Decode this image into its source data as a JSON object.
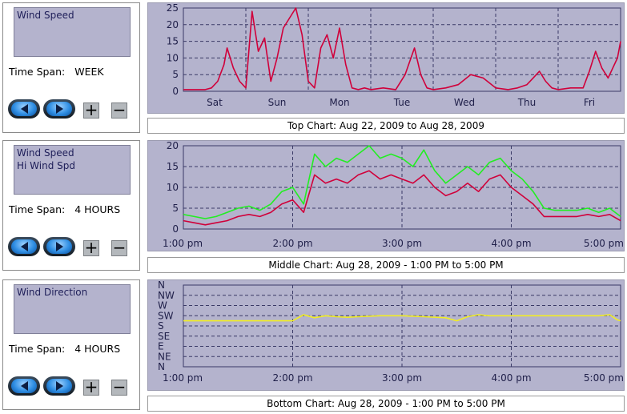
{
  "panels": [
    {
      "legend": [
        "Wind Speed"
      ],
      "time_span_label": "Time Span:",
      "time_span_value": "WEEK",
      "caption": "Top Chart:  Aug 22, 2009  to  Aug 28, 2009"
    },
    {
      "legend": [
        "Wind Speed",
        "Hi Wind Spd"
      ],
      "time_span_label": "Time Span:",
      "time_span_value": "4 HOURS",
      "caption": "Middle Chart:  Aug 28, 2009 - 1:00 PM  to  5:00 PM"
    },
    {
      "legend": [
        "Wind Direction"
      ],
      "time_span_label": "Time Span:",
      "time_span_value": "4 HOURS",
      "caption": "Bottom Chart:  Aug 28, 2009 - 1:00 PM  to  5:00 PM"
    }
  ],
  "controls": {
    "plus": "+",
    "minus": "−"
  },
  "icons": {
    "prev": "left-arrow-icon",
    "next": "right-arrow-icon"
  },
  "colors": {
    "wind_speed": "#d0003a",
    "hi_wind": "#22ee22",
    "wind_dir": "#f2ee22",
    "plot_bg": "#b4b3cd",
    "grid": "#3a3a66"
  },
  "chart_data": [
    {
      "type": "line",
      "ylim": [
        0,
        25
      ],
      "yticks": [
        0,
        5,
        10,
        15,
        20,
        25
      ],
      "xlim": [
        0,
        7
      ],
      "x_tick_labels": [
        "Sat",
        "Sun",
        "Mon",
        "Tue",
        "Wed",
        "Thu",
        "Fri"
      ],
      "series": [
        {
          "color": "#d0003a",
          "x": [
            0,
            0.2,
            0.35,
            0.45,
            0.55,
            0.65,
            0.7,
            0.8,
            0.9,
            1.0,
            1.1,
            1.2,
            1.3,
            1.4,
            1.5,
            1.6,
            1.7,
            1.8,
            1.9,
            2.0,
            2.1,
            2.2,
            2.3,
            2.4,
            2.5,
            2.6,
            2.7,
            2.8,
            2.9,
            3.0,
            3.2,
            3.4,
            3.55,
            3.7,
            3.8,
            3.9,
            4.0,
            4.2,
            4.4,
            4.6,
            4.8,
            5.0,
            5.2,
            5.35,
            5.5,
            5.6,
            5.7,
            5.8,
            5.9,
            6.0,
            6.2,
            6.4,
            6.5,
            6.6,
            6.7,
            6.8,
            6.95,
            7.0
          ],
          "y": [
            0.5,
            0.5,
            0.5,
            1,
            3,
            8,
            13,
            7,
            3,
            1,
            24,
            12,
            16,
            3,
            10,
            19,
            22,
            25,
            17,
            3,
            1,
            13,
            17,
            10,
            19,
            8,
            1,
            0.5,
            1,
            0.5,
            1,
            0.5,
            5,
            13,
            5,
            1,
            0.5,
            1,
            2,
            5,
            4,
            1,
            0.5,
            1,
            2,
            4,
            6,
            3,
            1,
            0.5,
            1,
            1,
            6,
            12,
            7,
            4,
            10,
            15
          ]
        }
      ]
    },
    {
      "type": "line",
      "ylim": [
        0,
        20
      ],
      "yticks": [
        0,
        5,
        10,
        15,
        20
      ],
      "xlim": [
        0,
        4
      ],
      "x_tick_labels": [
        "1:00 pm",
        "2:00 pm",
        "3:00 pm",
        "4:00 pm",
        "5:00 pm"
      ],
      "series": [
        {
          "color": "#22ee22",
          "x": [
            0,
            0.1,
            0.2,
            0.3,
            0.4,
            0.5,
            0.6,
            0.7,
            0.8,
            0.9,
            1.0,
            1.1,
            1.2,
            1.3,
            1.4,
            1.5,
            1.6,
            1.7,
            1.8,
            1.9,
            2.0,
            2.1,
            2.2,
            2.3,
            2.4,
            2.5,
            2.6,
            2.7,
            2.8,
            2.9,
            3.0,
            3.1,
            3.2,
            3.3,
            3.4,
            3.5,
            3.6,
            3.7,
            3.8,
            3.9,
            4.0
          ],
          "y": [
            3.5,
            3,
            2.5,
            3,
            4,
            5,
            5.5,
            4.5,
            6,
            9,
            10,
            6,
            18,
            15,
            17,
            16,
            18,
            20,
            17,
            18,
            17,
            15,
            19,
            14,
            11,
            13,
            15,
            13,
            16,
            17,
            14,
            12,
            9,
            5,
            4.5,
            4.5,
            4.5,
            5,
            4,
            5,
            3
          ]
        },
        {
          "color": "#d0003a",
          "x": [
            0,
            0.1,
            0.2,
            0.3,
            0.4,
            0.5,
            0.6,
            0.7,
            0.8,
            0.9,
            1.0,
            1.1,
            1.2,
            1.3,
            1.4,
            1.5,
            1.6,
            1.7,
            1.8,
            1.9,
            2.0,
            2.1,
            2.2,
            2.3,
            2.4,
            2.5,
            2.6,
            2.7,
            2.8,
            2.9,
            3.0,
            3.1,
            3.2,
            3.3,
            3.4,
            3.5,
            3.6,
            3.7,
            3.8,
            3.9,
            4.0
          ],
          "y": [
            2,
            1.5,
            1,
            1.5,
            2,
            3,
            3.5,
            3,
            4,
            6,
            7,
            4,
            13,
            11,
            12,
            11,
            13,
            14,
            12,
            13,
            12,
            11,
            13,
            10,
            8,
            9,
            11,
            9,
            12,
            13,
            10,
            8,
            6,
            3,
            3,
            3,
            3,
            3.5,
            3,
            3.5,
            2
          ]
        }
      ]
    },
    {
      "type": "line",
      "ylim": [
        0,
        8
      ],
      "y_tick_labels": [
        "N",
        "NE",
        "E",
        "SE",
        "S",
        "SW",
        "W",
        "NW",
        "N"
      ],
      "xlim": [
        0,
        4
      ],
      "x_tick_labels": [
        "1:00 pm",
        "2:00 pm",
        "3:00 pm",
        "4:00 pm",
        "5:00 pm"
      ],
      "series": [
        {
          "color": "#f2ee22",
          "x": [
            0,
            0.5,
            1.0,
            1.1,
            1.2,
            1.3,
            1.4,
            1.5,
            1.6,
            1.8,
            2.0,
            2.2,
            2.4,
            2.5,
            2.6,
            2.7,
            2.8,
            3.0,
            3.2,
            3.4,
            3.6,
            3.8,
            3.9,
            3.97,
            4.0
          ],
          "y": [
            4.5,
            4.5,
            4.5,
            5.1,
            4.8,
            5.0,
            4.9,
            4.85,
            4.9,
            5.0,
            5.0,
            4.9,
            4.8,
            4.5,
            4.9,
            5.1,
            5.0,
            5.0,
            5.0,
            5.0,
            5.0,
            5.0,
            5.1,
            4.6,
            4.5
          ]
        }
      ]
    }
  ]
}
